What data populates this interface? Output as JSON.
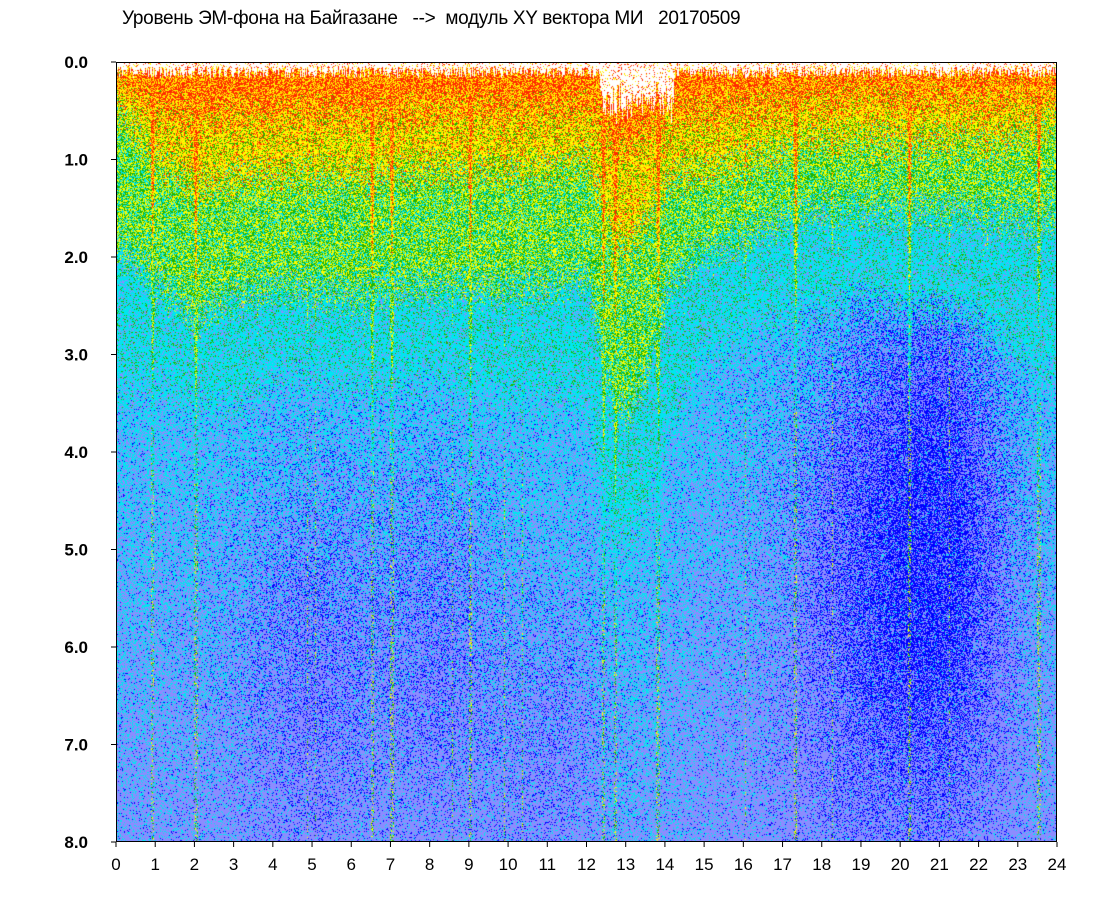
{
  "chart_data": {
    "type": "heatmap",
    "title": "Уровень ЭМ-фона на Байгазане   -->  модуль XY вектора МИ   20170509",
    "xlabel": "",
    "ylabel": "",
    "xlim": [
      0,
      24
    ],
    "ylim": [
      0,
      8
    ],
    "y_inverted": true,
    "x_ticks": [
      "0",
      "1",
      "2",
      "3",
      "4",
      "5",
      "6",
      "7",
      "8",
      "9",
      "10",
      "11",
      "12",
      "13",
      "14",
      "15",
      "16",
      "17",
      "18",
      "19",
      "20",
      "21",
      "22",
      "23",
      "24"
    ],
    "y_ticks": [
      "0.0",
      "1.0",
      "2.0",
      "3.0",
      "4.0",
      "5.0",
      "6.0",
      "7.0",
      "8.0"
    ],
    "grid": false,
    "colormap": [
      "#ffffff",
      "#ff2a00",
      "#ffd400",
      "#ffff00",
      "#20b400",
      "#00e6f0",
      "#8c8cff",
      "#0000ff"
    ],
    "density_profile": {
      "x_hours": [
        0,
        1,
        2,
        3,
        4,
        5,
        6,
        7,
        8,
        9,
        10,
        11,
        12,
        12.5,
        13,
        13.5,
        14,
        15,
        16,
        17,
        18,
        19,
        20,
        21,
        22,
        23,
        24
      ],
      "level_1": [
        0.5,
        1.0,
        1.3,
        1.2,
        1.2,
        1.1,
        1.2,
        1.1,
        1.1,
        1.1,
        1.1,
        1.1,
        1.0,
        1.6,
        1.9,
        1.6,
        1.2,
        1.1,
        1.0,
        0.9,
        0.8,
        0.8,
        0.8,
        0.8,
        0.8,
        0.8,
        0.6
      ],
      "level_2": [
        1.9,
        2.2,
        2.6,
        2.4,
        2.3,
        2.3,
        2.4,
        2.3,
        2.3,
        2.3,
        2.3,
        2.3,
        2.2,
        3.2,
        3.6,
        3.2,
        2.3,
        1.9,
        1.8,
        1.6,
        1.5,
        1.5,
        1.5,
        1.5,
        1.5,
        1.6,
        1.6
      ],
      "level_3": [
        3.4,
        3.3,
        3.5,
        3.5,
        3.2,
        3.2,
        3.3,
        3.3,
        3.2,
        3.3,
        3.4,
        3.4,
        3.5,
        4.6,
        4.9,
        4.6,
        3.8,
        3.0,
        2.8,
        2.6,
        2.5,
        2.4,
        2.5,
        2.5,
        2.6,
        3.0,
        3.2
      ]
    },
    "annotations": "vertical streaks at ~0.9, 2.0, 6.5, 7.0, 9.0, 12.4, 12.7, 13.8, 17.3, 20.2, 23.5 h"
  }
}
